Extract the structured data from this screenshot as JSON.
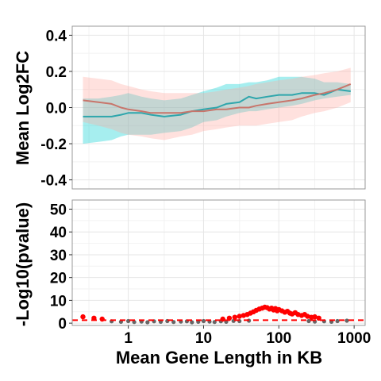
{
  "chart_data": [
    {
      "type": "line",
      "panel": "top",
      "title": "",
      "xlabel": "",
      "ylabel": "Mean Log2FC",
      "x_scale": "log10",
      "xlim": [
        0.18,
        1400
      ],
      "ylim": [
        -0.45,
        0.45
      ],
      "y_ticks": [
        -0.4,
        -0.2,
        0.0,
        0.2,
        0.4
      ],
      "y_tick_labels": [
        "-0.4",
        "-0.2",
        "0.0",
        "0.2",
        "0.4"
      ],
      "grid": true,
      "legend": "none",
      "series": [
        {
          "color": "#2EA6AC",
          "band_color": "#00CED1",
          "x": [
            0.25,
            0.4,
            0.6,
            0.8,
            1,
            1.5,
            2,
            3,
            5,
            7,
            10,
            15,
            20,
            30,
            40,
            50,
            70,
            100,
            150,
            200,
            300,
            400,
            600,
            900
          ],
          "y": [
            -0.05,
            -0.05,
            -0.05,
            -0.04,
            -0.03,
            -0.03,
            -0.04,
            -0.05,
            -0.04,
            -0.02,
            -0.01,
            0.0,
            0.02,
            0.03,
            0.06,
            0.05,
            0.06,
            0.07,
            0.07,
            0.08,
            0.08,
            0.07,
            0.1,
            0.09
          ],
          "lower": [
            -0.2,
            -0.19,
            -0.18,
            -0.16,
            -0.15,
            -0.15,
            -0.15,
            -0.14,
            -0.13,
            -0.11,
            -0.08,
            -0.07,
            -0.05,
            -0.03,
            -0.02,
            -0.02,
            -0.01,
            0.0,
            0.01,
            0.02,
            0.04,
            0.05,
            0.06,
            0.07
          ],
          "upper": [
            0.05,
            0.05,
            0.06,
            0.07,
            0.08,
            0.06,
            0.05,
            0.04,
            0.05,
            0.07,
            0.09,
            0.11,
            0.13,
            0.13,
            0.14,
            0.14,
            0.15,
            0.17,
            0.17,
            0.17,
            0.16,
            0.14,
            0.14,
            0.13
          ]
        },
        {
          "color": "#C8756B",
          "band_color": "#FFA8A0",
          "x": [
            0.25,
            0.4,
            0.6,
            0.8,
            1,
            1.5,
            2,
            3,
            5,
            7,
            10,
            15,
            20,
            30,
            40,
            50,
            70,
            100,
            150,
            200,
            300,
            400,
            600,
            900
          ],
          "y": [
            0.04,
            0.03,
            0.02,
            0.0,
            -0.01,
            -0.02,
            -0.03,
            -0.03,
            -0.03,
            -0.02,
            -0.02,
            -0.01,
            -0.01,
            0.0,
            0.0,
            0.01,
            0.02,
            0.03,
            0.04,
            0.05,
            0.07,
            0.08,
            0.1,
            0.13
          ],
          "lower": [
            -0.08,
            -0.1,
            -0.12,
            -0.14,
            -0.15,
            -0.16,
            -0.17,
            -0.18,
            -0.16,
            -0.15,
            -0.13,
            -0.12,
            -0.11,
            -0.1,
            -0.1,
            -0.1,
            -0.09,
            -0.08,
            -0.07,
            -0.05,
            -0.03,
            -0.02,
            0.0,
            0.03
          ],
          "upper": [
            0.17,
            0.16,
            0.15,
            0.13,
            0.12,
            0.1,
            0.09,
            0.08,
            0.08,
            0.08,
            0.08,
            0.09,
            0.1,
            0.11,
            0.12,
            0.13,
            0.14,
            0.15,
            0.16,
            0.17,
            0.18,
            0.19,
            0.2,
            0.22
          ]
        }
      ]
    },
    {
      "type": "scatter",
      "panel": "bottom",
      "title": "",
      "xlabel": "Mean Gene Length in KB",
      "ylabel": "-Log10(pvalue)",
      "x_scale": "log10",
      "xlim": [
        0.18,
        1400
      ],
      "ylim": [
        -1,
        54
      ],
      "x_ticks": [
        1,
        10,
        100,
        1000
      ],
      "x_tick_labels": [
        "1",
        "10",
        "100",
        "1000"
      ],
      "y_ticks": [
        0,
        10,
        20,
        30,
        40,
        50
      ],
      "y_tick_labels": [
        "0",
        "10",
        "20",
        "30",
        "40",
        "50"
      ],
      "grid": true,
      "legend": "none",
      "threshold_line": {
        "y": 1.3,
        "color": "#FF0000",
        "style": "dashed"
      },
      "series": [
        {
          "color": "#666666",
          "x": [
            0.6,
            0.8,
            1.0,
            1.2,
            1.5,
            1.8,
            2.2,
            2.7,
            3.3,
            4.0,
            5.0,
            6.0,
            7.0,
            8.5,
            10,
            12,
            14,
            17,
            20,
            25,
            30,
            40,
            250,
            300,
            400,
            500,
            600,
            800
          ],
          "y": [
            0.8,
            0.6,
            0.9,
            0.5,
            0.7,
            0.4,
            0.8,
            0.6,
            0.9,
            0.5,
            0.7,
            0.8,
            0.4,
            0.6,
            0.9,
            0.7,
            0.5,
            0.8,
            0.6,
            1.0,
            0.9,
            1.1,
            0.9,
            0.7,
            0.8,
            0.6,
            0.9,
            1.1
          ]
        },
        {
          "color": "#FF0000",
          "x": [
            0.25,
            0.35,
            0.45,
            18,
            22,
            26,
            30,
            34,
            38,
            42,
            46,
            50,
            55,
            60,
            65,
            70,
            75,
            80,
            85,
            90,
            95,
            100,
            110,
            120,
            130,
            140,
            150,
            165,
            180,
            200,
            220,
            240,
            270,
            300,
            340
          ],
          "y": [
            2.8,
            2.2,
            1.8,
            1.8,
            2.2,
            2.6,
            3.0,
            3.4,
            3.8,
            4.4,
            5.0,
            5.6,
            6.2,
            6.6,
            7.0,
            6.8,
            6.2,
            6.6,
            5.8,
            6.4,
            5.4,
            6.0,
            5.4,
            4.8,
            5.2,
            4.4,
            4.0,
            4.6,
            3.8,
            3.4,
            3.8,
            3.0,
            2.6,
            2.8,
            2.2
          ]
        }
      ]
    }
  ]
}
